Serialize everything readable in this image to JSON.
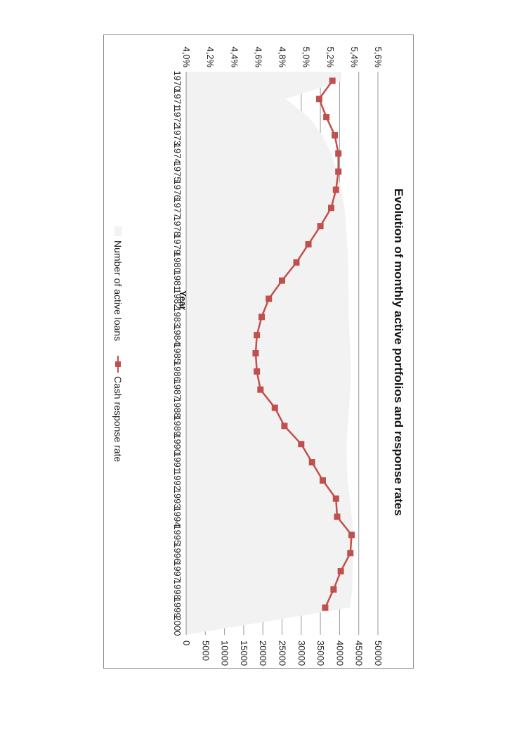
{
  "chart_data": {
    "type": "line",
    "title": "Evolution of monthly active portfolios and response rates",
    "xlabel": "Year",
    "x": [
      "1970",
      "1971",
      "1972",
      "1973",
      "1974",
      "1975",
      "1976",
      "1977",
      "1978",
      "1979",
      "1980",
      "1981",
      "1982",
      "1983",
      "1984",
      "1985",
      "1986",
      "1987",
      "1988",
      "1989",
      "1990",
      "1991",
      "1992",
      "1993",
      "1994",
      "1995",
      "1996",
      "1997",
      "1998",
      "1999",
      "2000"
    ],
    "y_left": {
      "min": 4.0,
      "max": 5.6,
      "ticks": [
        "4,0%",
        "4,2%",
        "4,4%",
        "4,6%",
        "4,8%",
        "5,0%",
        "5,2%",
        "5,4%",
        "5,6%"
      ]
    },
    "y_right": {
      "min": 0,
      "max": 50000,
      "ticks": [
        "0",
        "5000",
        "10000",
        "15000",
        "20000",
        "25000",
        "30000",
        "35000",
        "40000",
        "45000",
        "50000"
      ]
    },
    "series": [
      {
        "name": "Number of active loans",
        "type": "area",
        "axis": "right",
        "color": "#f2f2f2",
        "values": [
          40500,
          26000,
          32000,
          35500,
          37800,
          39300,
          40500,
          41300,
          41700,
          42000,
          42200,
          42300,
          42400,
          42400,
          42600,
          42800,
          42900,
          42800,
          42500,
          42100,
          41800,
          41900,
          42100,
          42700,
          43200,
          43500,
          43500,
          43400,
          43300,
          42700,
          0
        ]
      },
      {
        "name": "Cash response rate",
        "type": "line",
        "axis": "left",
        "color": "#c0504d",
        "marker": "square",
        "values": [
          5.22,
          5.11,
          5.17,
          5.24,
          5.27,
          5.27,
          5.25,
          5.21,
          5.12,
          5.02,
          4.92,
          4.8,
          4.69,
          4.63,
          4.59,
          4.58,
          4.59,
          4.62,
          4.74,
          4.82,
          4.96,
          5.05,
          5.14,
          5.25,
          5.26,
          5.38,
          5.37,
          5.29,
          5.23,
          5.16,
          null
        ]
      }
    ],
    "grid": true,
    "legend": "bottom"
  }
}
